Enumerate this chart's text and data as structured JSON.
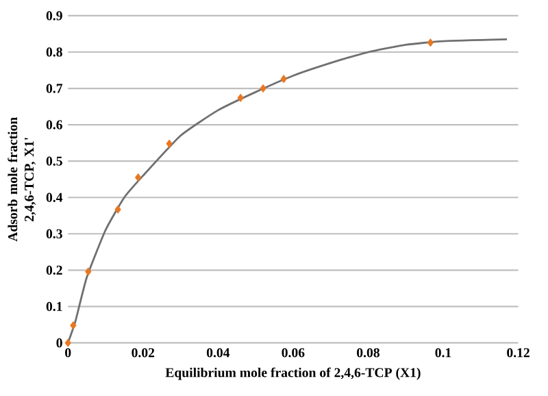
{
  "chart_data": {
    "type": "scatter",
    "xlabel": "Equilibrium mole fraction of 2,4,6-TCP (X1)",
    "ylabel": "Adsorb mole fraction 2,4,6-TCP, X1'",
    "xlim": [
      0,
      0.12
    ],
    "ylim": [
      0,
      0.9
    ],
    "xticks": [
      0,
      0.02,
      0.04,
      0.06,
      0.08,
      0.1,
      0.12
    ],
    "yticks": [
      0,
      0.1,
      0.2,
      0.3,
      0.4,
      0.5,
      0.6,
      0.7,
      0.8,
      0.9
    ],
    "grid": "y",
    "series": [
      {
        "type": "line",
        "color": "#707070",
        "marker": "none",
        "x": [
          0,
          0.002,
          0.005,
          0.01,
          0.015,
          0.02,
          0.03,
          0.04,
          0.05,
          0.06,
          0.07,
          0.08,
          0.09,
          0.1,
          0.117
        ],
        "values": [
          0,
          0.06,
          0.18,
          0.31,
          0.4,
          0.46,
          0.57,
          0.64,
          0.69,
          0.735,
          0.77,
          0.8,
          0.82,
          0.83,
          0.835
        ]
      },
      {
        "color": "#e87722",
        "marker": "diamond",
        "x": [
          0,
          0.0014,
          0.0054,
          0.0133,
          0.0187,
          0.027,
          0.046,
          0.052,
          0.0575,
          0.0966
        ],
        "values": [
          0,
          0.048,
          0.196,
          0.367,
          0.455,
          0.548,
          0.674,
          0.7,
          0.726,
          0.826
        ]
      }
    ]
  }
}
